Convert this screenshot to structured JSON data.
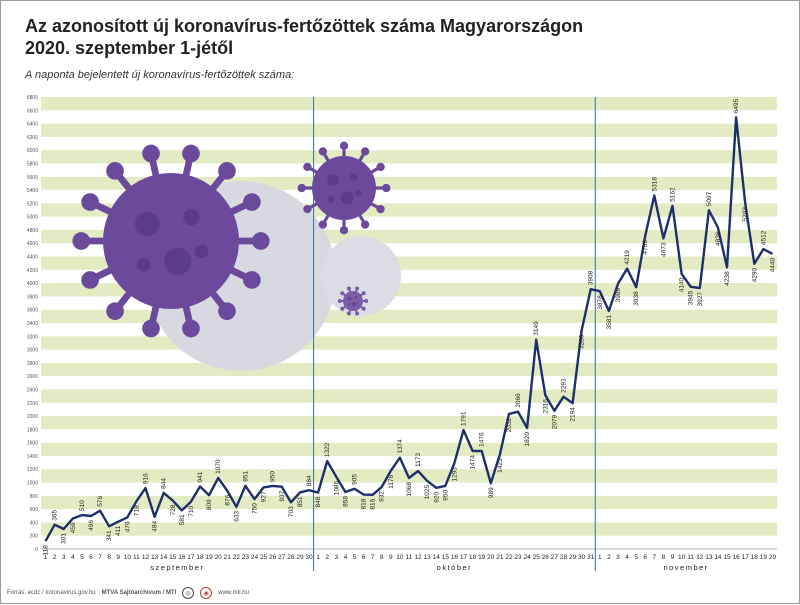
{
  "header": {
    "title_line1": "Az azonosított új koronavírus-fertőzöttek száma Magyarországon",
    "title_line2": "2020. szeptember 1-jétől",
    "subtitle": "A naponta bejelentett új koronavírus-fertőzöttek száma:"
  },
  "footer": {
    "source": "Forrás: ecdc / koronavirus.gov.hu",
    "credit": "MTVA Sajtóarchívum / MTI",
    "website": "www.mti.hu"
  },
  "colors": {
    "line": "#1f2f6b",
    "stripe_green": "#e3ebc3",
    "stripe_white": "#ffffff",
    "virus_purple": "#6b4a9c",
    "virus_gray": "#d8d8e0"
  },
  "icons": [
    "virus-illustration-large",
    "virus-illustration-medium",
    "virus-illustration-small",
    "mtva-logo",
    "mti-logo"
  ],
  "chart_data": {
    "type": "line",
    "title": "Az azonosított új koronavírus-fertőzöttek száma Magyarországon 2020. szeptember 1-jétől",
    "subtitle": "A naponta bejelentett új koronavírus-fertőzöttek száma:",
    "ylim": [
      0,
      6800
    ],
    "yticks": [
      0,
      200,
      400,
      600,
      800,
      1000,
      1200,
      1400,
      1600,
      1800,
      2000,
      2200,
      2400,
      2600,
      2800,
      3000,
      3200,
      3400,
      3600,
      3800,
      4000,
      4200,
      4400,
      4600,
      4800,
      5000,
      5200,
      5400,
      5600,
      5800,
      6000,
      6200,
      6400,
      6600,
      6800
    ],
    "grid": true,
    "months": [
      {
        "name": "szeptember",
        "days": [
          "1",
          "2",
          "3",
          "4",
          "5",
          "6",
          "7",
          "8",
          "9",
          "10",
          "11",
          "12",
          "13",
          "14",
          "15",
          "16",
          "17",
          "18",
          "19",
          "20",
          "21",
          "22",
          "23",
          "24",
          "25",
          "26",
          "27",
          "28",
          "29",
          "30"
        ]
      },
      {
        "name": "október",
        "days": [
          "1",
          "2",
          "3",
          "4",
          "5",
          "6",
          "7",
          "8",
          "9",
          "10",
          "11",
          "12",
          "13",
          "14",
          "15",
          "16",
          "17",
          "18",
          "19",
          "20",
          "21",
          "22",
          "23",
          "24",
          "25",
          "26",
          "27",
          "28",
          "29",
          "30",
          "31"
        ]
      },
      {
        "name": "november",
        "days": [
          "1",
          "2",
          "3",
          "4",
          "5",
          "6",
          "7",
          "8",
          "9",
          "10",
          "11",
          "12",
          "13",
          "14",
          "15",
          "16",
          "17",
          "18",
          "19",
          "20"
        ]
      }
    ],
    "values": [
      118,
      365,
      301,
      459,
      510,
      496,
      576,
      341,
      411,
      476,
      718,
      916,
      484,
      844,
      728,
      581,
      710,
      941,
      809,
      1070,
      876,
      633,
      951,
      750,
      927,
      950,
      937,
      703,
      851,
      884,
      848,
      1322,
      1086,
      858,
      905,
      818,
      816,
      932,
      1176,
      1374,
      1068,
      1173,
      1025,
      920,
      950,
      1293,
      1791,
      1474,
      1476,
      989,
      1423,
      2032,
      2066,
      1820,
      3149,
      2316,
      2079,
      2291,
      2194,
      3286,
      3908,
      3878,
      3581,
      3989,
      4219,
      3938,
      4709,
      5318,
      4673,
      5162,
      4140,
      3945,
      3927,
      5097,
      4836,
      4238,
      6495,
      5203,
      4290,
      4512,
      4440
    ]
  }
}
